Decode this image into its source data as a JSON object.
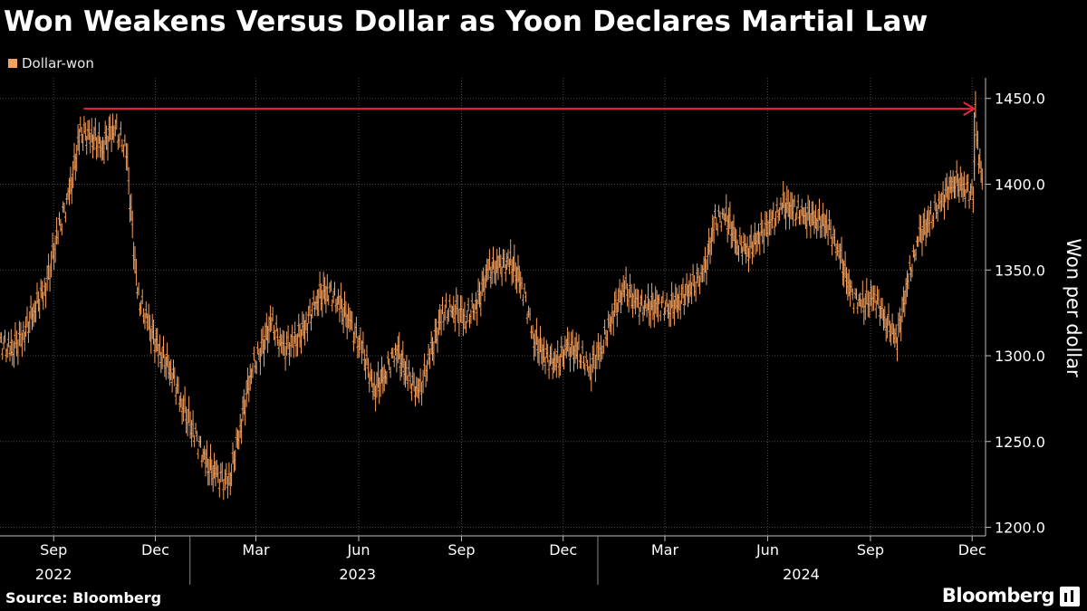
{
  "header": {
    "title": "Won Weakens Versus Dollar as Yoon Declares Martial Law"
  },
  "footer": {
    "source": "Source: Bloomberg",
    "brand": "Bloomberg"
  },
  "colors": {
    "series": "#f6a15d",
    "annotation": "#e8273d",
    "grid": "#4a4a4a",
    "background": "#000000"
  },
  "chart_data": {
    "type": "line",
    "title": "Won Weakens Versus Dollar as Yoon Declares Martial Law",
    "ylabel": "Won per dollar",
    "ylim": [
      1195,
      1462
    ],
    "y_ticks": [
      "1200.0",
      "1250.0",
      "1300.0",
      "1350.0",
      "1400.0",
      "1450.0"
    ],
    "y_tick_values": [
      1200,
      1250,
      1300,
      1350,
      1400,
      1450
    ],
    "y_axis_side": "right",
    "grid": "horizontal dashed",
    "x_range": [
      "2022-07-15",
      "2024-12-13"
    ],
    "x_month_ticks": [
      {
        "label": "Sep",
        "date": "2022-09-01"
      },
      {
        "label": "Dec",
        "date": "2022-12-01"
      },
      {
        "label": "Mar",
        "date": "2023-03-01"
      },
      {
        "label": "Jun",
        "date": "2023-06-01"
      },
      {
        "label": "Sep",
        "date": "2023-09-01"
      },
      {
        "label": "Dec",
        "date": "2023-12-01"
      },
      {
        "label": "Mar",
        "date": "2024-03-01"
      },
      {
        "label": "Jun",
        "date": "2024-06-01"
      },
      {
        "label": "Sep",
        "date": "2024-09-01"
      },
      {
        "label": "Dec",
        "date": "2024-12-01"
      }
    ],
    "x_year_ticks": [
      {
        "label": "2022",
        "date": "2022-09-01"
      },
      {
        "label": "2023",
        "date": "2023-05-31"
      },
      {
        "label": "2024",
        "date": "2024-07-01"
      }
    ],
    "x_year_separators": [
      "2023-01-01",
      "2024-01-01"
    ],
    "legend": {
      "position": "top-left",
      "entries": [
        "Dollar-won"
      ]
    },
    "series": [
      {
        "name": "Dollar-won",
        "x": [
          "2022-07-15",
          "2022-07-25",
          "2022-08-05",
          "2022-08-15",
          "2022-08-25",
          "2022-09-05",
          "2022-09-15",
          "2022-09-25",
          "2022-10-05",
          "2022-10-15",
          "2022-10-25",
          "2022-11-05",
          "2022-11-15",
          "2022-11-25",
          "2022-12-05",
          "2022-12-15",
          "2022-12-25",
          "2023-01-05",
          "2023-01-15",
          "2023-01-25",
          "2023-02-05",
          "2023-02-15",
          "2023-02-25",
          "2023-03-05",
          "2023-03-15",
          "2023-03-25",
          "2023-04-05",
          "2023-04-15",
          "2023-04-25",
          "2023-05-05",
          "2023-05-15",
          "2023-05-25",
          "2023-06-05",
          "2023-06-15",
          "2023-06-25",
          "2023-07-05",
          "2023-07-15",
          "2023-07-25",
          "2023-08-05",
          "2023-08-15",
          "2023-08-25",
          "2023-09-05",
          "2023-09-15",
          "2023-09-25",
          "2023-10-05",
          "2023-10-15",
          "2023-10-25",
          "2023-11-05",
          "2023-11-15",
          "2023-11-25",
          "2023-12-05",
          "2023-12-15",
          "2023-12-25",
          "2024-01-05",
          "2024-01-15",
          "2024-01-25",
          "2024-02-05",
          "2024-02-15",
          "2024-02-25",
          "2024-03-05",
          "2024-03-15",
          "2024-03-25",
          "2024-04-05",
          "2024-04-15",
          "2024-04-25",
          "2024-05-05",
          "2024-05-15",
          "2024-05-25",
          "2024-06-05",
          "2024-06-15",
          "2024-06-25",
          "2024-07-05",
          "2024-07-15",
          "2024-07-25",
          "2024-08-05",
          "2024-08-15",
          "2024-08-25",
          "2024-09-05",
          "2024-09-15",
          "2024-09-25",
          "2024-10-05",
          "2024-10-15",
          "2024-10-25",
          "2024-11-05",
          "2024-11-15",
          "2024-11-25",
          "2024-12-02",
          "2024-12-03",
          "2024-12-04",
          "2024-12-06",
          "2024-12-09",
          "2024-12-11"
        ],
        "y": [
          1308,
          1303,
          1312,
          1328,
          1340,
          1372,
          1394,
          1430,
          1428,
          1422,
          1434,
          1420,
          1336,
          1318,
          1302,
          1292,
          1272,
          1255,
          1238,
          1230,
          1226,
          1258,
          1292,
          1302,
          1320,
          1304,
          1308,
          1318,
          1334,
          1338,
          1330,
          1318,
          1302,
          1280,
          1290,
          1304,
          1288,
          1278,
          1302,
          1325,
          1328,
          1322,
          1330,
          1350,
          1352,
          1355,
          1342,
          1310,
          1300,
          1295,
          1305,
          1302,
          1292,
          1306,
          1325,
          1340,
          1330,
          1328,
          1330,
          1328,
          1333,
          1340,
          1348,
          1378,
          1382,
          1365,
          1362,
          1370,
          1378,
          1388,
          1385,
          1382,
          1380,
          1376,
          1358,
          1335,
          1330,
          1335,
          1320,
          1310,
          1345,
          1370,
          1380,
          1392,
          1402,
          1398,
          1394,
          1410,
          1440,
          1422,
          1410,
          1405
        ]
      }
    ],
    "annotation": {
      "type": "arrow",
      "from_x": "2022-09-28",
      "to_x": "2024-12-03",
      "y": 1444
    }
  }
}
